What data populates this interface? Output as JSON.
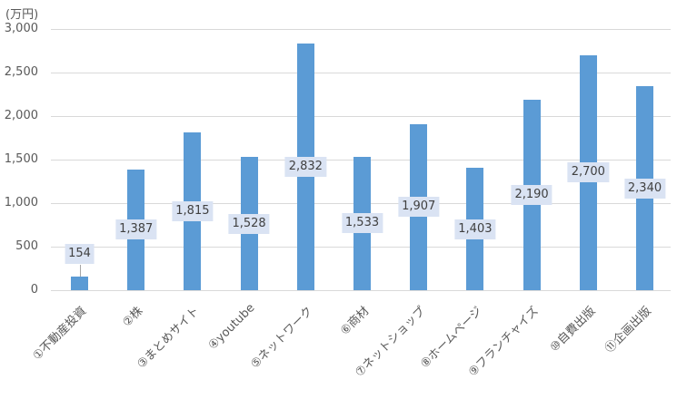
{
  "chart_data": {
    "type": "bar",
    "title": "",
    "xlabel": "",
    "ylabel": "(万円)",
    "ylim": [
      0,
      3000
    ],
    "yticks": [
      "0",
      "500",
      "1,000",
      "1,500",
      "2,000",
      "2,500",
      "3,000"
    ],
    "grid": true,
    "legend": null,
    "bar_color": "#5b9bd5",
    "label_bg_color": "#dae3f3",
    "categories": [
      "①不動産投資",
      "②株",
      "③まとめサイト",
      "④youtube",
      "⑤ネットワーク",
      "⑥商材",
      "⑦ネットショップ",
      "⑧ホームページ",
      "⑨フランチャイズ",
      "⑩自費出版",
      "⑪企画出版"
    ],
    "values": [
      154,
      1387,
      1815,
      1528,
      2832,
      1533,
      1907,
      1403,
      2190,
      2700,
      2340
    ],
    "data_labels": [
      "154",
      "1,387",
      "1,815",
      "1,528",
      "2,832",
      "1,533",
      "1,907",
      "1,403",
      "2,190",
      "2,700",
      "2,340"
    ]
  },
  "axis": {
    "unit_label": "(万円)",
    "yticks": [
      "3,000",
      "2,500",
      "2,000",
      "1,500",
      "1,000",
      "500",
      "0"
    ]
  }
}
